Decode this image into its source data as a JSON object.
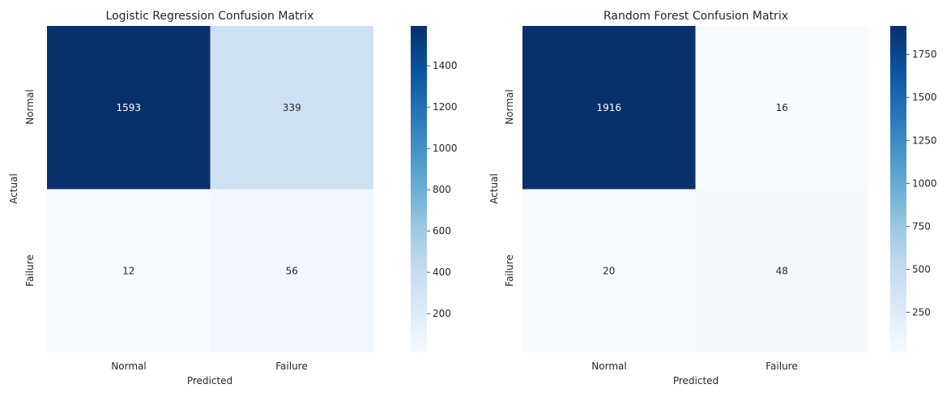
{
  "chart_data": [
    {
      "type": "heatmap",
      "title": "Logistic Regression Confusion Matrix",
      "xlabel": "Predicted",
      "ylabel": "Actual",
      "x_categories": [
        "Normal",
        "Failure"
      ],
      "y_categories": [
        "Normal",
        "Failure"
      ],
      "values": [
        [
          1593,
          339
        ],
        [
          12,
          56
        ]
      ],
      "colormap": "Blues",
      "colorbar": {
        "min": 12,
        "max": 1593,
        "ticks": [
          200,
          400,
          600,
          800,
          1000,
          1200,
          1400
        ]
      }
    },
    {
      "type": "heatmap",
      "title": "Random Forest Confusion Matrix",
      "xlabel": "Predicted",
      "ylabel": "Actual",
      "x_categories": [
        "Normal",
        "Failure"
      ],
      "y_categories": [
        "Normal",
        "Failure"
      ],
      "values": [
        [
          1916,
          16
        ],
        [
          20,
          48
        ]
      ],
      "colormap": "Blues",
      "colorbar": {
        "min": 16,
        "max": 1916,
        "ticks": [
          250,
          500,
          750,
          1000,
          1250,
          1500,
          1750
        ]
      }
    }
  ]
}
